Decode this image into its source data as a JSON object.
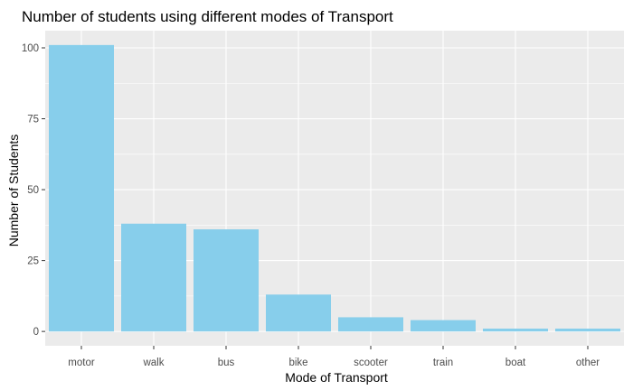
{
  "chart_data": {
    "type": "bar",
    "title": "Number of students using different modes of Transport",
    "xlabel": "Mode of Transport",
    "ylabel": "Number of Students",
    "categories": [
      "motor",
      "walk",
      "bus",
      "bike",
      "scooter",
      "train",
      "boat",
      "other"
    ],
    "values": [
      101,
      38,
      36,
      13,
      5,
      4,
      1,
      1
    ],
    "ylim": [
      0,
      105
    ],
    "yticks": [
      0,
      25,
      50,
      75,
      100
    ],
    "grid": true,
    "bar_color": "#87CEEB",
    "panel_background": "#EBEBEB",
    "grid_color": "#FFFFFF"
  }
}
